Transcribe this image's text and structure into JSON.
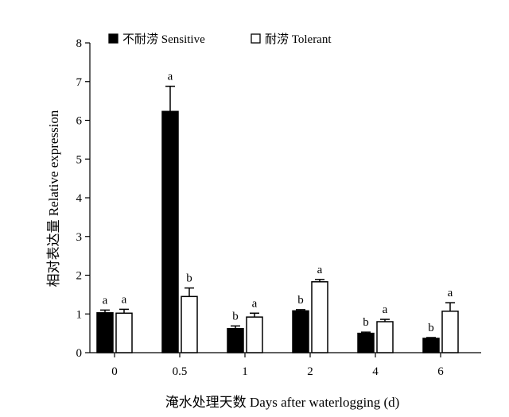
{
  "chart_data": {
    "type": "bar",
    "xlabel": "淹水处理天数 Days after waterlogging (d)",
    "ylabel": "相对表达量 Relative expression",
    "ylim": [
      0,
      8
    ],
    "yticks": [
      0,
      1,
      2,
      3,
      4,
      5,
      6,
      7,
      8
    ],
    "categories": [
      "0",
      "0.5",
      "1",
      "2",
      "4",
      "6"
    ],
    "legend_position": "top-left",
    "series": [
      {
        "name": "不耐涝 Sensitive",
        "color": "#000000",
        "values": [
          1.03,
          6.23,
          0.62,
          1.08,
          0.5,
          0.37
        ],
        "errors": [
          0.07,
          0.65,
          0.07,
          0.03,
          0.03,
          0.02
        ],
        "letters": [
          "a",
          "a",
          "b",
          "b",
          "b",
          "b"
        ]
      },
      {
        "name": "耐涝 Tolerant",
        "color": "#ffffff",
        "values": [
          1.02,
          1.45,
          0.92,
          1.83,
          0.8,
          1.07
        ],
        "errors": [
          0.1,
          0.22,
          0.1,
          0.06,
          0.06,
          0.22
        ],
        "letters": [
          "a",
          "b",
          "a",
          "a",
          "a",
          "a"
        ]
      }
    ]
  }
}
